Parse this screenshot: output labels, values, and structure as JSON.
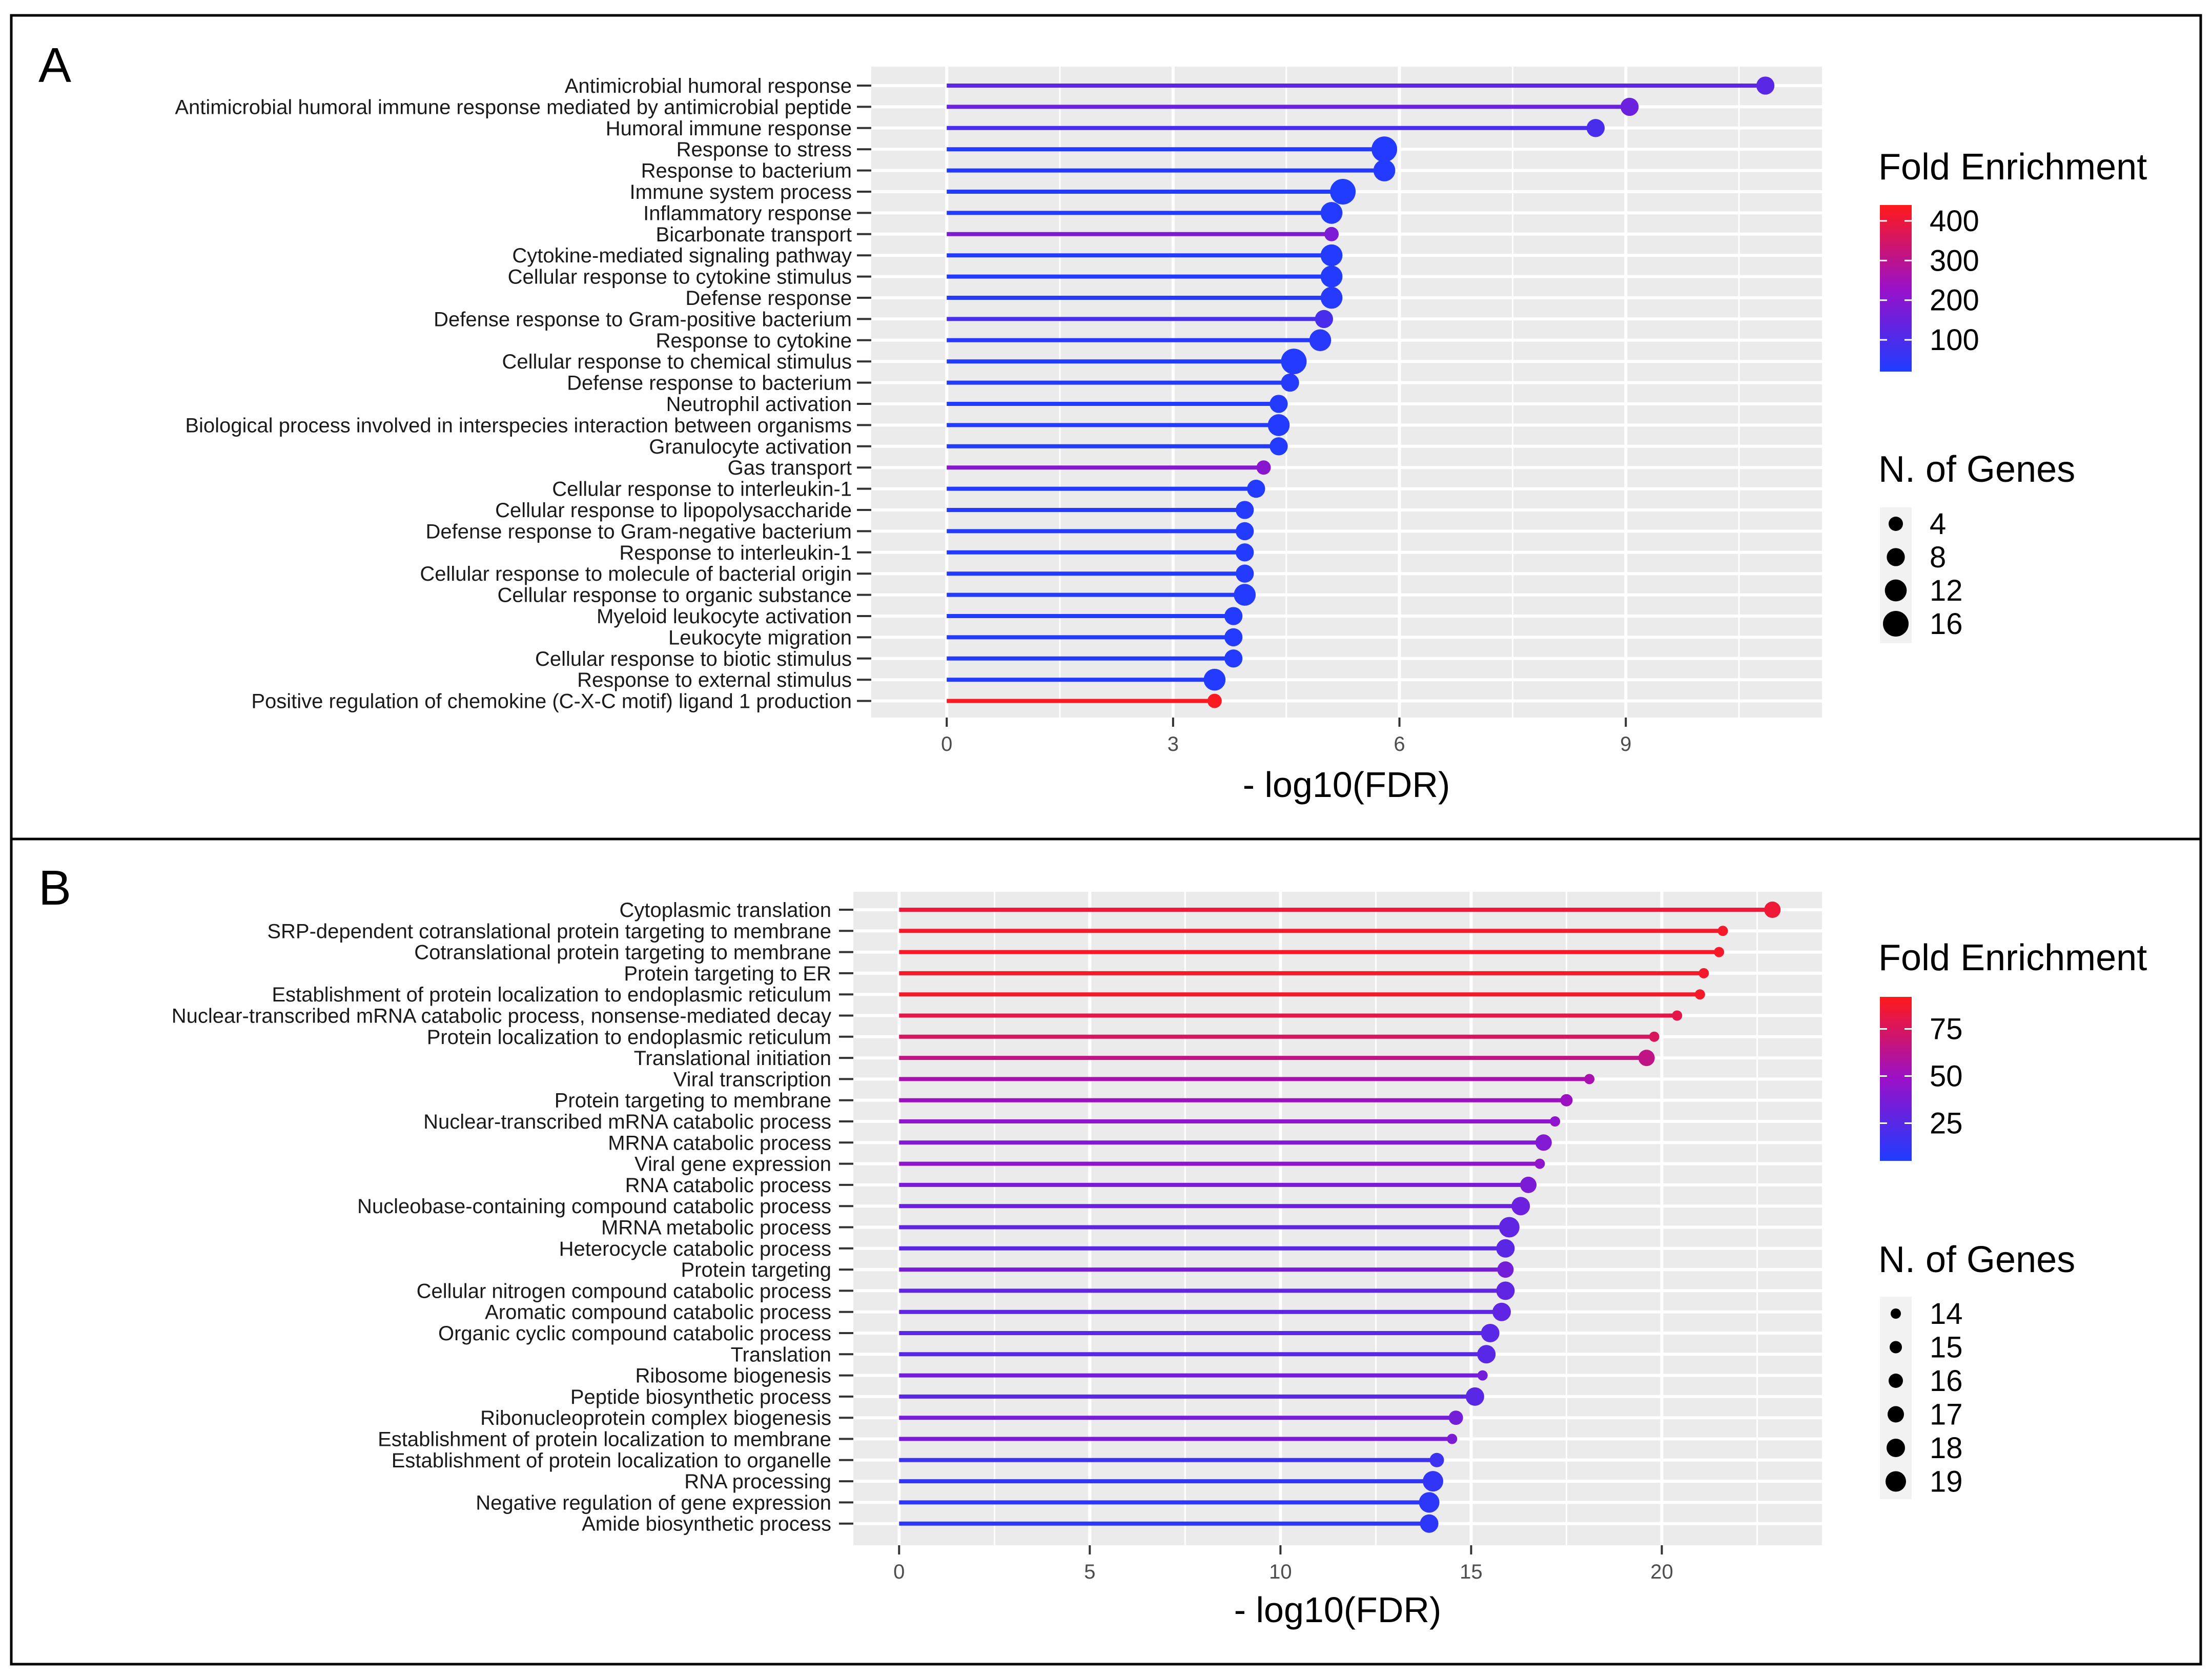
{
  "chart_data": [
    {
      "panel_label": "A",
      "type": "lollipop",
      "xlabel": "- log10(FDR)",
      "xlim": [
        -1,
        11.6
      ],
      "xticks": [
        0,
        3,
        6,
        9
      ],
      "categories": [
        "Antimicrobial humoral response",
        "Antimicrobial humoral immune response mediated by antimicrobial peptide",
        "Humoral immune response",
        "Response to stress",
        "Response to bacterium",
        "Immune system process",
        "Inflammatory response",
        "Bicarbonate transport",
        "Cytokine-mediated signaling pathway",
        "Cellular response to cytokine stimulus",
        "Defense response",
        "Defense response to Gram-positive bacterium",
        "Response to cytokine",
        "Cellular response to chemical stimulus",
        "Defense response to bacterium",
        "Neutrophil activation",
        "Biological process involved in interspecies interaction between organisms",
        "Granulocyte activation",
        "Gas transport",
        "Cellular response to interleukin-1",
        "Cellular response to lipopolysaccharide",
        "Defense response to Gram-negative bacterium",
        "Response to interleukin-1",
        "Cellular response to molecule of bacterial origin",
        "Cellular response to organic substance",
        "Myeloid leukocyte activation",
        "Leukocyte migration",
        "Cellular response to biotic stimulus",
        "Response to external stimulus",
        "Positive regulation of chemokine (C-X-C motif) ligand 1 production"
      ],
      "values": [
        10.85,
        9.05,
        8.6,
        5.8,
        5.8,
        5.25,
        5.1,
        5.1,
        5.1,
        5.1,
        5.1,
        5.0,
        4.95,
        4.6,
        4.55,
        4.4,
        4.4,
        4.4,
        4.2,
        4.1,
        3.95,
        3.95,
        3.95,
        3.95,
        3.95,
        3.8,
        3.8,
        3.8,
        3.55,
        3.55
      ],
      "fold_enrichment": [
        120,
        150,
        90,
        25,
        25,
        20,
        25,
        180,
        25,
        25,
        30,
        90,
        35,
        25,
        30,
        25,
        25,
        25,
        200,
        25,
        30,
        25,
        25,
        25,
        25,
        25,
        25,
        25,
        25,
        430
      ],
      "n_genes": [
        8,
        8,
        8,
        16,
        12,
        16,
        12,
        4,
        12,
        12,
        12,
        8,
        12,
        16,
        8,
        8,
        12,
        8,
        4,
        8,
        8,
        8,
        8,
        8,
        12,
        8,
        8,
        8,
        12,
        4
      ],
      "color_legend": {
        "title": "Fold Enrichment",
        "min": 20,
        "max": 440,
        "ticks": [
          400,
          300,
          200,
          100
        ]
      },
      "size_legend": {
        "title": "N. of Genes",
        "ticks": [
          4,
          8,
          12,
          16
        ]
      }
    },
    {
      "panel_label": "B",
      "type": "lollipop",
      "xlabel": "- log10(FDR)",
      "xlim": [
        -1.2,
        24.2
      ],
      "xticks": [
        0,
        5,
        10,
        15,
        20
      ],
      "categories": [
        "Cytoplasmic translation",
        "SRP-dependent cotranslational protein targeting to membrane",
        "Cotranslational protein targeting to membrane",
        "Protein targeting to ER",
        "Establishment of protein localization to endoplasmic reticulum",
        "Nuclear-transcribed mRNA catabolic process, nonsense-mediated decay",
        "Protein localization to endoplasmic reticulum",
        "Translational initiation",
        "Viral transcription",
        "Protein targeting to membrane",
        "Nuclear-transcribed mRNA catabolic process",
        "MRNA catabolic process",
        "Viral gene expression",
        "RNA catabolic process",
        "Nucleobase-containing compound catabolic process",
        "MRNA metabolic process",
        "Heterocycle catabolic process",
        "Protein targeting",
        "Cellular nitrogen compound catabolic process",
        "Aromatic compound catabolic process",
        "Organic cyclic compound catabolic process",
        "Translation",
        "Ribosome biogenesis",
        "Peptide biosynthetic process",
        "Ribonucleoprotein complex biogenesis",
        "Establishment of protein localization to membrane",
        "Establishment of protein localization to organelle",
        "RNA processing",
        "Negative regulation of gene expression",
        "Amide biosynthetic process"
      ],
      "values": [
        22.9,
        21.6,
        21.5,
        21.1,
        21.0,
        20.4,
        19.8,
        19.6,
        18.1,
        17.5,
        17.2,
        16.9,
        16.8,
        16.5,
        16.3,
        16.0,
        15.9,
        15.9,
        15.9,
        15.8,
        15.5,
        15.4,
        15.3,
        15.1,
        14.6,
        14.5,
        14.1,
        14.0,
        13.9,
        13.9
      ],
      "fold_enrichment": [
        85,
        88,
        88,
        88,
        88,
        80,
        75,
        65,
        55,
        50,
        45,
        40,
        45,
        38,
        32,
        28,
        26,
        35,
        28,
        28,
        25,
        25,
        35,
        25,
        35,
        38,
        15,
        12,
        10,
        10
      ],
      "n_genes": [
        17,
        14,
        14,
        14,
        14,
        14,
        14,
        17,
        14,
        15,
        14,
        17,
        14,
        17,
        18,
        19,
        18,
        17,
        18,
        18,
        18,
        18,
        14,
        18,
        16,
        14,
        16,
        19,
        19,
        18
      ],
      "color_legend": {
        "title": "Fold Enrichment",
        "min": 5,
        "max": 92,
        "ticks": [
          75,
          50,
          25
        ]
      },
      "size_legend": {
        "title": "N. of Genes",
        "ticks": [
          14,
          15,
          16,
          17,
          18,
          19
        ]
      }
    }
  ]
}
